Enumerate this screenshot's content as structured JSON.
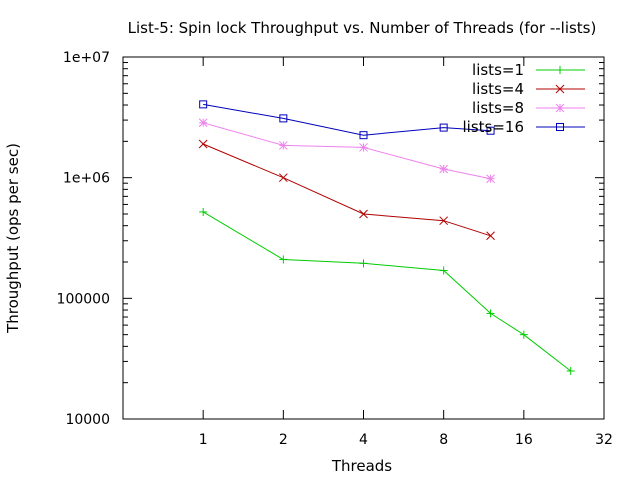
{
  "chart_data": {
    "type": "line",
    "title": "List-5: Spin lock Throughput vs. Number of Threads (for --lists)",
    "xlabel": "Threads",
    "ylabel": "Throughput (ops per sec)",
    "x_scale": "log2",
    "y_scale": "log10",
    "xlim": [
      0.5,
      32
    ],
    "ylim": [
      10000,
      10000000
    ],
    "x_ticks": [
      {
        "value": 1,
        "label": "1"
      },
      {
        "value": 2,
        "label": "2"
      },
      {
        "value": 4,
        "label": "4"
      },
      {
        "value": 8,
        "label": "8"
      },
      {
        "value": 16,
        "label": "16"
      },
      {
        "value": 32,
        "label": "32"
      }
    ],
    "y_ticks": [
      {
        "value": 10000,
        "label": "10000"
      },
      {
        "value": 100000,
        "label": "100000"
      },
      {
        "value": 1000000,
        "label": "1e+06"
      },
      {
        "value": 10000000,
        "label": "1e+07"
      }
    ],
    "grid": false,
    "legend_position": "top-right",
    "series": [
      {
        "name": "lists=1",
        "color": "#00cc00",
        "marker": "plus",
        "x": [
          1,
          2,
          4,
          8,
          12,
          16,
          24
        ],
        "y": [
          520000,
          210000,
          195000,
          170000,
          75000,
          50000,
          25000
        ]
      },
      {
        "name": "lists=4",
        "color": "#b00000",
        "marker": "cross",
        "x": [
          1,
          2,
          4,
          8,
          12
        ],
        "y": [
          1900000,
          1000000,
          500000,
          440000,
          330000
        ]
      },
      {
        "name": "lists=8",
        "color": "#ee82ee",
        "marker": "star",
        "x": [
          1,
          2,
          4,
          8,
          12
        ],
        "y": [
          2850000,
          1850000,
          1780000,
          1180000,
          980000
        ]
      },
      {
        "name": "lists=16",
        "color": "#0000bb",
        "marker": "square",
        "x": [
          1,
          2,
          4,
          8,
          12
        ],
        "y": [
          4050000,
          3100000,
          2250000,
          2600000,
          2450000
        ]
      }
    ]
  }
}
